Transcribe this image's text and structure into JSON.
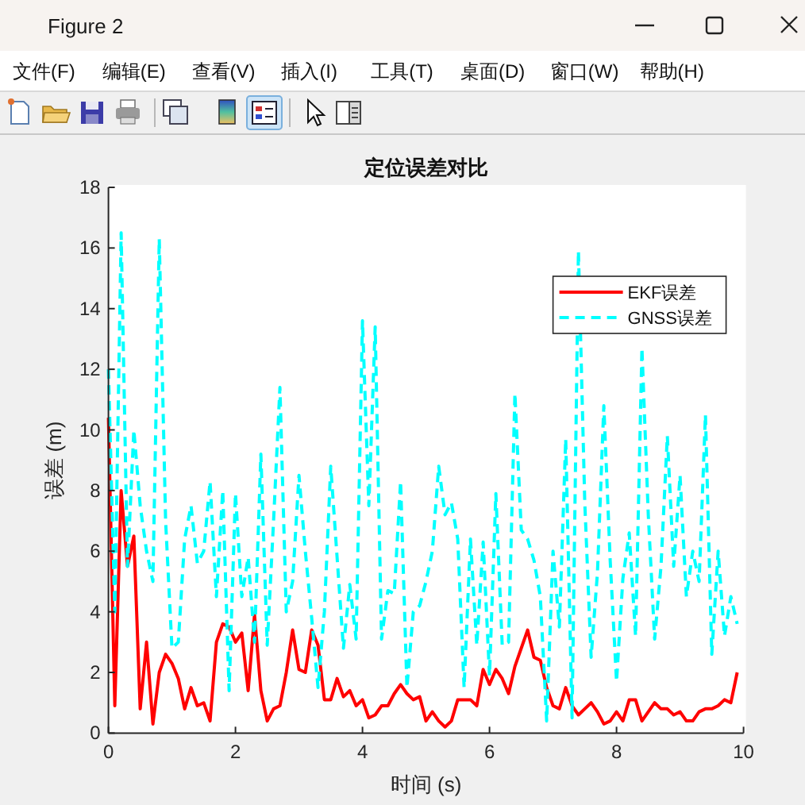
{
  "chart_data": {
    "type": "line",
    "title": "定位误差对比",
    "xlabel": "时间 (s)",
    "ylabel": "误差 (m)",
    "annotations": [
      "Figure 2",
      "文件(F)",
      "编辑(E)",
      "查看(V)",
      "插入(I)",
      "工具(T)",
      "桌面(D)",
      "窗口(W)",
      "帮助(H)"
    ],
    "x": [
      0,
      0.1,
      0.2,
      0.3,
      0.4,
      0.5,
      0.6,
      0.7,
      0.8,
      0.9,
      1,
      1.1,
      1.2,
      1.3,
      1.4,
      1.5,
      1.6,
      1.7,
      1.8,
      1.9,
      2,
      2.1,
      2.2,
      2.3,
      2.4,
      2.5,
      2.6,
      2.7,
      2.8,
      2.9,
      3,
      3.1,
      3.2,
      3.3,
      3.4,
      3.5,
      3.6,
      3.7,
      3.8,
      3.9,
      4,
      4.1,
      4.2,
      4.3,
      4.4,
      4.5,
      4.6,
      4.7,
      4.8,
      4.9,
      5,
      5.1,
      5.2,
      5.3,
      5.4,
      5.5,
      5.6,
      5.7,
      5.8,
      5.9,
      6,
      6.1,
      6.2,
      6.3,
      6.4,
      6.5,
      6.6,
      6.7,
      6.8,
      6.9,
      7,
      7.1,
      7.2,
      7.3,
      7.4,
      7.5,
      7.6,
      7.7,
      7.8,
      7.9,
      8,
      8.1,
      8.2,
      8.3,
      8.4,
      8.5,
      8.6,
      8.7,
      8.8,
      8.9,
      9,
      9.1,
      9.2,
      9.3,
      9.4,
      9.5,
      9.6,
      9.7,
      9.8,
      9.9
    ],
    "series": [
      {
        "name": "EKF误差",
        "color": "#ff0000",
        "line_style": "solid",
        "values": [
          10.4,
          0.9,
          8.0,
          5.5,
          6.5,
          0.8,
          3.0,
          0.3,
          2.0,
          2.6,
          2.3,
          1.8,
          0.8,
          1.5,
          0.9,
          1.0,
          0.4,
          3.0,
          3.6,
          3.5,
          3.0,
          3.3,
          1.4,
          3.9,
          1.4,
          0.4,
          0.8,
          0.9,
          2.0,
          3.4,
          2.1,
          2.0,
          3.4,
          2.9,
          1.1,
          1.1,
          1.8,
          1.2,
          1.4,
          0.9,
          1.1,
          0.5,
          0.6,
          0.9,
          0.9,
          1.3,
          1.6,
          1.3,
          1.1,
          1.2,
          0.4,
          0.7,
          0.4,
          0.2,
          0.4,
          1.1,
          1.1,
          1.1,
          0.9,
          2.1,
          1.6,
          2.1,
          1.8,
          1.3,
          2.2,
          2.8,
          3.4,
          2.5,
          2.4,
          1.5,
          0.9,
          0.8,
          1.5,
          0.9,
          0.6,
          0.8,
          1.0,
          0.7,
          0.3,
          0.4,
          0.7,
          0.4,
          1.1,
          1.1,
          0.4,
          0.7,
          1.0,
          0.8,
          0.8,
          0.6,
          0.7,
          0.4,
          0.4,
          0.7,
          0.8,
          0.8,
          0.9,
          1.1,
          1.0,
          2.0
        ]
      },
      {
        "name": "GNSS误差",
        "color": "#00ffff",
        "line_style": "dashed",
        "values": [
          12.0,
          4.0,
          16.5,
          5.5,
          10.0,
          7.5,
          6.0,
          5.0,
          16.3,
          7.0,
          2.8,
          3.0,
          6.4,
          7.5,
          5.6,
          6.0,
          8.3,
          4.5,
          8.0,
          1.4,
          7.9,
          4.5,
          5.8,
          3.0,
          9.2,
          2.9,
          7.0,
          11.4,
          4.0,
          5.0,
          8.5,
          6.0,
          3.8,
          1.5,
          4.0,
          8.8,
          5.8,
          2.8,
          4.9,
          3.1,
          13.6,
          7.5,
          13.4,
          3.1,
          4.7,
          4.6,
          8.3,
          1.5,
          4.0,
          4.2,
          5.0,
          6.0,
          8.8,
          7.2,
          7.6,
          6.4,
          1.5,
          6.4,
          2.9,
          6.3,
          1.9,
          7.9,
          2.9,
          3.0,
          11.2,
          6.7,
          6.4,
          5.7,
          4.5,
          0.4,
          6.0,
          3.5,
          9.7,
          0.5,
          15.9,
          7.6,
          2.5,
          5.3,
          10.8,
          5.7,
          1.7,
          5.1,
          6.6,
          3.2,
          12.7,
          7.2,
          3.1,
          5.5,
          9.8,
          5.5,
          8.5,
          4.5,
          6.0,
          5.0,
          10.5,
          2.6,
          6.0,
          3.2,
          4.5,
          3.6
        ]
      }
    ],
    "xlim": [
      0,
      10
    ],
    "ylim": [
      0,
      18
    ],
    "xticks": [
      0,
      2,
      4,
      6,
      8,
      10
    ],
    "yticks": [
      0,
      2,
      4,
      6,
      8,
      10,
      12,
      14,
      16,
      18
    ],
    "legend": "top right"
  }
}
